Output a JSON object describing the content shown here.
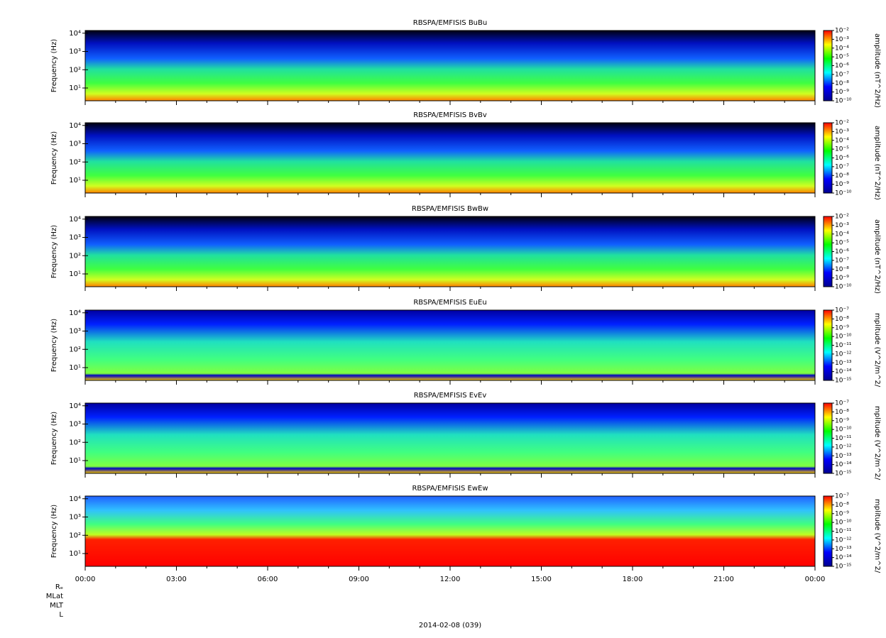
{
  "chart_data": [
    {
      "type": "spectrogram",
      "title": "RBSPA/EMFISIS  BuBu",
      "ylabel": "Frequency (Hz)",
      "yscale": "log",
      "ylim": [
        2,
        14000
      ],
      "yticks": [
        {
          "value": 10,
          "label": "10¹"
        },
        {
          "value": 100,
          "label": "10²"
        },
        {
          "value": 1000,
          "label": "10³"
        },
        {
          "value": 10000,
          "label": "10⁴"
        }
      ],
      "colorbar": {
        "label": "amplitude (nT^2/Hz)",
        "clim": [
          1e-10,
          0.01
        ],
        "ticks": [
          {
            "value": 0.01,
            "label": "10⁻²"
          },
          {
            "value": 0.001,
            "label": "10⁻³"
          },
          {
            "value": 0.0001,
            "label": "10⁻⁴"
          },
          {
            "value": 1e-05,
            "label": "10⁻⁵"
          },
          {
            "value": 1e-06,
            "label": "10⁻⁶"
          },
          {
            "value": 1e-07,
            "label": "10⁻⁷"
          },
          {
            "value": 1e-08,
            "label": "10⁻⁸"
          },
          {
            "value": 1e-09,
            "label": "10⁻⁹"
          },
          {
            "value": 1e-10,
            "label": "10⁻¹⁰"
          }
        ]
      }
    },
    {
      "type": "spectrogram",
      "title": "RBSPA/EMFISIS  BvBv",
      "ylabel": "Frequency (Hz)",
      "yscale": "log",
      "ylim": [
        2,
        14000
      ],
      "yticks": [
        {
          "value": 10,
          "label": "10¹"
        },
        {
          "value": 100,
          "label": "10²"
        },
        {
          "value": 1000,
          "label": "10³"
        },
        {
          "value": 10000,
          "label": "10⁴"
        }
      ],
      "colorbar": {
        "label": "amplitude (nT^2/Hz)",
        "clim": [
          1e-10,
          0.01
        ],
        "ticks": [
          {
            "value": 0.01,
            "label": "10⁻²"
          },
          {
            "value": 0.001,
            "label": "10⁻³"
          },
          {
            "value": 0.0001,
            "label": "10⁻⁴"
          },
          {
            "value": 1e-05,
            "label": "10⁻⁵"
          },
          {
            "value": 1e-06,
            "label": "10⁻⁶"
          },
          {
            "value": 1e-07,
            "label": "10⁻⁷"
          },
          {
            "value": 1e-08,
            "label": "10⁻⁸"
          },
          {
            "value": 1e-09,
            "label": "10⁻⁹"
          },
          {
            "value": 1e-10,
            "label": "10⁻¹⁰"
          }
        ]
      }
    },
    {
      "type": "spectrogram",
      "title": "RBSPA/EMFISIS  BwBw",
      "ylabel": "Frequency (Hz)",
      "yscale": "log",
      "ylim": [
        2,
        14000
      ],
      "yticks": [
        {
          "value": 10,
          "label": "10¹"
        },
        {
          "value": 100,
          "label": "10²"
        },
        {
          "value": 1000,
          "label": "10³"
        },
        {
          "value": 10000,
          "label": "10⁴"
        }
      ],
      "colorbar": {
        "label": "amplitude (nT^2/Hz)",
        "clim": [
          1e-10,
          0.01
        ],
        "ticks": [
          {
            "value": 0.01,
            "label": "10⁻²"
          },
          {
            "value": 0.001,
            "label": "10⁻³"
          },
          {
            "value": 0.0001,
            "label": "10⁻⁴"
          },
          {
            "value": 1e-05,
            "label": "10⁻⁵"
          },
          {
            "value": 1e-06,
            "label": "10⁻⁶"
          },
          {
            "value": 1e-07,
            "label": "10⁻⁷"
          },
          {
            "value": 1e-08,
            "label": "10⁻⁸"
          },
          {
            "value": 1e-09,
            "label": "10⁻⁹"
          },
          {
            "value": 1e-10,
            "label": "10⁻¹⁰"
          }
        ]
      }
    },
    {
      "type": "spectrogram",
      "title": "RBSPA/EMFISIS  EuEu",
      "ylabel": "Frequency (Hz)",
      "yscale": "log",
      "ylim": [
        2,
        14000
      ],
      "yticks": [
        {
          "value": 10,
          "label": "10¹"
        },
        {
          "value": 100,
          "label": "10²"
        },
        {
          "value": 1000,
          "label": "10³"
        },
        {
          "value": 10000,
          "label": "10⁴"
        }
      ],
      "colorbar": {
        "label": "mplitude (V^2/m^2/",
        "clim": [
          1e-15,
          1e-07
        ],
        "ticks": [
          {
            "value": 1e-07,
            "label": "10⁻⁷"
          },
          {
            "value": 1e-08,
            "label": "10⁻⁸"
          },
          {
            "value": 1e-09,
            "label": "10⁻⁹"
          },
          {
            "value": 1e-10,
            "label": "10⁻¹⁰"
          },
          {
            "value": 1e-11,
            "label": "10⁻¹¹"
          },
          {
            "value": 1e-12,
            "label": "10⁻¹²"
          },
          {
            "value": 1e-13,
            "label": "10⁻¹³"
          },
          {
            "value": 1e-14,
            "label": "10⁻¹⁴"
          },
          {
            "value": 1e-15,
            "label": "10⁻¹⁵"
          }
        ]
      }
    },
    {
      "type": "spectrogram",
      "title": "RBSPA/EMFISIS  EvEv",
      "ylabel": "Frequency (Hz)",
      "yscale": "log",
      "ylim": [
        2,
        14000
      ],
      "yticks": [
        {
          "value": 10,
          "label": "10¹"
        },
        {
          "value": 100,
          "label": "10²"
        },
        {
          "value": 1000,
          "label": "10³"
        },
        {
          "value": 10000,
          "label": "10⁴"
        }
      ],
      "colorbar": {
        "label": "mplitude (V^2/m^2/",
        "clim": [
          1e-15,
          1e-07
        ],
        "ticks": [
          {
            "value": 1e-07,
            "label": "10⁻⁷"
          },
          {
            "value": 1e-08,
            "label": "10⁻⁸"
          },
          {
            "value": 1e-09,
            "label": "10⁻⁹"
          },
          {
            "value": 1e-10,
            "label": "10⁻¹⁰"
          },
          {
            "value": 1e-11,
            "label": "10⁻¹¹"
          },
          {
            "value": 1e-12,
            "label": "10⁻¹²"
          },
          {
            "value": 1e-13,
            "label": "10⁻¹³"
          },
          {
            "value": 1e-14,
            "label": "10⁻¹⁴"
          },
          {
            "value": 1e-15,
            "label": "10⁻¹⁵"
          }
        ]
      }
    },
    {
      "type": "spectrogram",
      "title": "RBSPA/EMFISIS  EwEw",
      "ylabel": "Frequency (Hz)",
      "yscale": "log",
      "ylim": [
        2,
        14000
      ],
      "yticks": [
        {
          "value": 10,
          "label": "10¹"
        },
        {
          "value": 100,
          "label": "10²"
        },
        {
          "value": 1000,
          "label": "10³"
        },
        {
          "value": 10000,
          "label": "10⁴"
        }
      ],
      "colorbar": {
        "label": "mplitude (V^2/m^2/",
        "clim": [
          1e-15,
          1e-07
        ],
        "ticks": [
          {
            "value": 1e-07,
            "label": "10⁻⁷"
          },
          {
            "value": 1e-08,
            "label": "10⁻⁸"
          },
          {
            "value": 1e-09,
            "label": "10⁻⁹"
          },
          {
            "value": 1e-10,
            "label": "10⁻¹⁰"
          },
          {
            "value": 1e-11,
            "label": "10⁻¹¹"
          },
          {
            "value": 1e-12,
            "label": "10⁻¹²"
          },
          {
            "value": 1e-13,
            "label": "10⁻¹³"
          },
          {
            "value": 1e-14,
            "label": "10⁻¹⁴"
          },
          {
            "value": 1e-15,
            "label": "10⁻¹⁵"
          }
        ]
      }
    }
  ],
  "x_axis": {
    "xlim": [
      0,
      24
    ],
    "xticks": [
      {
        "value": 0,
        "label": "00:00"
      },
      {
        "value": 3,
        "label": "03:00"
      },
      {
        "value": 6,
        "label": "06:00"
      },
      {
        "value": 9,
        "label": "09:00"
      },
      {
        "value": 12,
        "label": "12:00"
      },
      {
        "value": 15,
        "label": "15:00"
      },
      {
        "value": 18,
        "label": "18:00"
      },
      {
        "value": 21,
        "label": "21:00"
      },
      {
        "value": 24,
        "label": "00:00"
      }
    ],
    "xminorticks": [
      1,
      2,
      4,
      5,
      7,
      8,
      10,
      11,
      13,
      14,
      16,
      17,
      19,
      20,
      22,
      23
    ]
  },
  "colormap": [
    "#00008f",
    "#0000ff",
    "#00ffff",
    "#00ff00",
    "#ffff00",
    "#ff0000"
  ],
  "ephemeris_labels": [
    "Rₑ",
    "MLat",
    "MLT",
    "L"
  ],
  "date_label": "2014-02-08 (039)"
}
